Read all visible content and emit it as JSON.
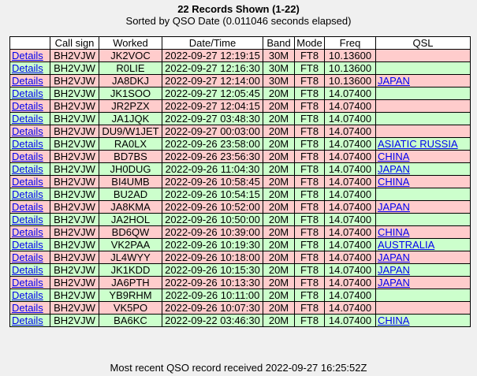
{
  "header": {
    "title": "22 Records Shown (1-22)",
    "subtitle": "Sorted by QSO Date (0.011046 seconds elapsed)"
  },
  "table": {
    "columns": [
      "",
      "Call sign",
      "Worked",
      "Date/Time",
      "Band",
      "Mode",
      "Freq",
      "QSL"
    ],
    "rows": [
      {
        "details": "Details",
        "callsign": "BH2VJW",
        "worked": "JK2VOC",
        "datetime": "2022-09-27 12:19:15",
        "band": "30M",
        "mode": "FT8",
        "freq": "10.13600",
        "qsl": "",
        "color": "pink"
      },
      {
        "details": "Details",
        "callsign": "BH2VJW",
        "worked": "R0LIE",
        "datetime": "2022-09-27 12:16:30",
        "band": "30M",
        "mode": "FT8",
        "freq": "10.13600",
        "qsl": "",
        "color": "green"
      },
      {
        "details": "Details",
        "callsign": "BH2VJW",
        "worked": "JA8DKJ",
        "datetime": "2022-09-27 12:14:00",
        "band": "30M",
        "mode": "FT8",
        "freq": "10.13600",
        "qsl": "JAPAN",
        "color": "pink"
      },
      {
        "details": "Details",
        "callsign": "BH2VJW",
        "worked": "JK1SOO",
        "datetime": "2022-09-27 12:05:45",
        "band": "20M",
        "mode": "FT8",
        "freq": "14.07400",
        "qsl": "",
        "color": "green"
      },
      {
        "details": "Details",
        "callsign": "BH2VJW",
        "worked": "JR2PZX",
        "datetime": "2022-09-27 12:04:15",
        "band": "20M",
        "mode": "FT8",
        "freq": "14.07400",
        "qsl": "",
        "color": "pink"
      },
      {
        "details": "Details",
        "callsign": "BH2VJW",
        "worked": "JA1JQK",
        "datetime": "2022-09-27 03:48:30",
        "band": "20M",
        "mode": "FT8",
        "freq": "14.07400",
        "qsl": "",
        "color": "green"
      },
      {
        "details": "Details",
        "callsign": "BH2VJW",
        "worked": "DU9/W1JET",
        "datetime": "2022-09-27 00:03:00",
        "band": "20M",
        "mode": "FT8",
        "freq": "14.07400",
        "qsl": "",
        "color": "pink"
      },
      {
        "details": "Details",
        "callsign": "BH2VJW",
        "worked": "RA0LX",
        "datetime": "2022-09-26 23:58:00",
        "band": "20M",
        "mode": "FT8",
        "freq": "14.07400",
        "qsl": "ASIATIC RUSSIA",
        "color": "green"
      },
      {
        "details": "Details",
        "callsign": "BH2VJW",
        "worked": "BD7BS",
        "datetime": "2022-09-26 23:56:30",
        "band": "20M",
        "mode": "FT8",
        "freq": "14.07400",
        "qsl": "CHINA",
        "color": "pink"
      },
      {
        "details": "Details",
        "callsign": "BH2VJW",
        "worked": "JH0DUG",
        "datetime": "2022-09-26 11:04:30",
        "band": "20M",
        "mode": "FT8",
        "freq": "14.07400",
        "qsl": "JAPAN",
        "color": "green"
      },
      {
        "details": "Details",
        "callsign": "BH2VJW",
        "worked": "BI4UMB",
        "datetime": "2022-09-26 10:58:45",
        "band": "20M",
        "mode": "FT8",
        "freq": "14.07400",
        "qsl": "CHINA",
        "color": "pink"
      },
      {
        "details": "Details",
        "callsign": "BH2VJW",
        "worked": "BU2AD",
        "datetime": "2022-09-26 10:54:15",
        "band": "20M",
        "mode": "FT8",
        "freq": "14.07400",
        "qsl": "",
        "color": "green"
      },
      {
        "details": "Details",
        "callsign": "BH2VJW",
        "worked": "JA8KMA",
        "datetime": "2022-09-26 10:52:00",
        "band": "20M",
        "mode": "FT8",
        "freq": "14.07400",
        "qsl": "JAPAN",
        "color": "pink"
      },
      {
        "details": "Details",
        "callsign": "BH2VJW",
        "worked": "JA2HOL",
        "datetime": "2022-09-26 10:50:00",
        "band": "20M",
        "mode": "FT8",
        "freq": "14.07400",
        "qsl": "",
        "color": "green"
      },
      {
        "details": "Details",
        "callsign": "BH2VJW",
        "worked": "BD6QW",
        "datetime": "2022-09-26 10:39:00",
        "band": "20M",
        "mode": "FT8",
        "freq": "14.07400",
        "qsl": "CHINA",
        "color": "pink"
      },
      {
        "details": "Details",
        "callsign": "BH2VJW",
        "worked": "VK2PAA",
        "datetime": "2022-09-26 10:19:30",
        "band": "20M",
        "mode": "FT8",
        "freq": "14.07400",
        "qsl": "AUSTRALIA",
        "color": "green"
      },
      {
        "details": "Details",
        "callsign": "BH2VJW",
        "worked": "JL4WYY",
        "datetime": "2022-09-26 10:18:00",
        "band": "20M",
        "mode": "FT8",
        "freq": "14.07400",
        "qsl": "JAPAN",
        "color": "pink"
      },
      {
        "details": "Details",
        "callsign": "BH2VJW",
        "worked": "JK1KDD",
        "datetime": "2022-09-26 10:15:30",
        "band": "20M",
        "mode": "FT8",
        "freq": "14.07400",
        "qsl": "JAPAN",
        "color": "green"
      },
      {
        "details": "Details",
        "callsign": "BH2VJW",
        "worked": "JA6PTH",
        "datetime": "2022-09-26 10:13:30",
        "band": "20M",
        "mode": "FT8",
        "freq": "14.07400",
        "qsl": "JAPAN",
        "color": "pink"
      },
      {
        "details": "Details",
        "callsign": "BH2VJW",
        "worked": "YB9RHM",
        "datetime": "2022-09-26 10:11:00",
        "band": "20M",
        "mode": "FT8",
        "freq": "14.07400",
        "qsl": "",
        "color": "green"
      },
      {
        "details": "Details",
        "callsign": "BH2VJW",
        "worked": "VK5PO",
        "datetime": "2022-09-26 10:07:30",
        "band": "20M",
        "mode": "FT8",
        "freq": "14.07400",
        "qsl": "",
        "color": "pink"
      },
      {
        "details": "Details",
        "callsign": "BH2VJW",
        "worked": "BA6KC",
        "datetime": "2022-09-22 03:46:30",
        "band": "20M",
        "mode": "FT8",
        "freq": "14.07400",
        "qsl": "CHINA",
        "color": "green"
      }
    ]
  },
  "footer": {
    "text": "Most recent QSO record received 2022-09-27 16:25:52Z"
  },
  "colors": {
    "row_green": "#ccffcc",
    "row_pink": "#ffcccc",
    "link": "#0000ee",
    "background": "#f0f0f0"
  }
}
